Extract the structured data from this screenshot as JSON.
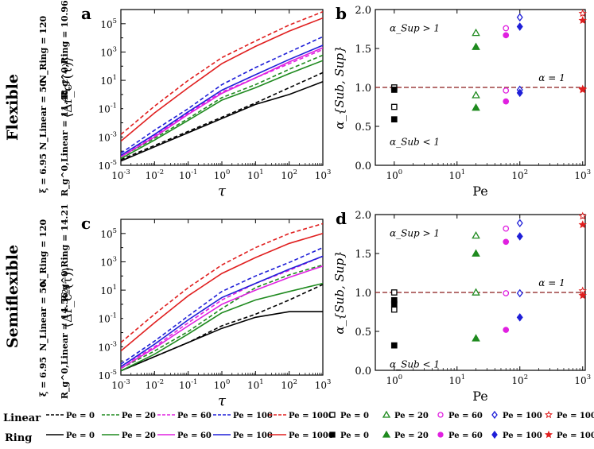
{
  "colors": {
    "pe0": "#000000",
    "pe20": "#1f8a1f",
    "pe60": "#e020e0",
    "pe100": "#1f1fd8",
    "pe1000": "#e01f1f",
    "ref_line": "#8b1a1a"
  },
  "row_labels": [
    {
      "name": "Flexible",
      "params_a": "ξ = 6.95",
      "params_b": "N_Linear = 50",
      "params_c": "N_Ring = 120",
      "params_d": "R_g^0,Linear = 11.48",
      "params_e": "R_g^0,Ring = 10.96"
    },
    {
      "name": "Semiflexible",
      "params_a": "ξ = 6.95",
      "params_b": "N_Linear = 50",
      "params_c": "N_Ring = 120",
      "params_d": "R_g^0,Linear = 14.56",
      "params_e": "R_g^0,Ring = 14.21"
    }
  ],
  "legend": {
    "linear_label": "Linear",
    "ring_label": "Ring",
    "entries": [
      "Pe = 0",
      "Pe = 20",
      "Pe = 60",
      "Pe = 100",
      "Pe = 1000"
    ]
  },
  "chart_data": [
    {
      "panel": "a",
      "type": "line",
      "xlabel": "τ",
      "ylabel": "⟨Δr_c²(τ)⟩",
      "xscale": "log",
      "yscale": "log",
      "xlim": [
        0.001,
        1000
      ],
      "ylim": [
        1e-05,
        1000000
      ],
      "xticks": [
        "10-3",
        "10-2",
        "10-1",
        "100",
        "101",
        "102",
        "103"
      ],
      "yticks": [
        "10-5",
        "10-3",
        "10-1",
        "101",
        "103",
        "105"
      ],
      "x": [
        0.001,
        0.01,
        0.1,
        1,
        10,
        100,
        1000
      ],
      "series": [
        {
          "name": "Linear Pe = 0",
          "style": "dashed",
          "color": "#000000",
          "values": [
            2.5e-05,
            0.00025,
            0.0025,
            0.025,
            0.25,
            3,
            35
          ]
        },
        {
          "name": "Linear Pe = 20",
          "style": "dashed",
          "color": "#1f8a1f",
          "values": [
            4e-05,
            0.0008,
            0.02,
            0.6,
            5,
            60,
            600
          ]
        },
        {
          "name": "Linear Pe = 60",
          "style": "dashed",
          "color": "#e020e0",
          "values": [
            5e-05,
            0.0012,
            0.05,
            1.5,
            15,
            150,
            1500
          ]
        },
        {
          "name": "Linear Pe = 100",
          "style": "dashed",
          "color": "#1f1fd8",
          "values": [
            7e-05,
            0.003,
            0.1,
            5,
            80,
            1000,
            12000
          ]
        },
        {
          "name": "Linear Pe = 1000",
          "style": "dashed",
          "color": "#e01f1f",
          "values": [
            0.0015,
            0.15,
            10,
            400,
            6000,
            80000,
            700000
          ]
        },
        {
          "name": "Ring Pe = 0",
          "style": "solid",
          "color": "#000000",
          "values": [
            2e-05,
            0.0002,
            0.002,
            0.02,
            0.2,
            1,
            8
          ]
        },
        {
          "name": "Ring Pe = 20",
          "style": "solid",
          "color": "#1f8a1f",
          "values": [
            3e-05,
            0.0006,
            0.015,
            0.4,
            3,
            30,
            250
          ]
        },
        {
          "name": "Ring Pe = 60",
          "style": "solid",
          "color": "#e020e0",
          "values": [
            4e-05,
            0.001,
            0.04,
            1.2,
            15,
            200,
            2000
          ]
        },
        {
          "name": "Ring Pe = 100",
          "style": "solid",
          "color": "#1f1fd8",
          "values": [
            5e-05,
            0.0015,
            0.06,
            2,
            25,
            300,
            3000
          ]
        },
        {
          "name": "Ring Pe = 1000",
          "style": "solid",
          "color": "#e01f1f",
          "values": [
            0.0005,
            0.05,
            3,
            150,
            2500,
            30000,
            250000
          ]
        }
      ]
    },
    {
      "panel": "b",
      "type": "scatter",
      "xlabel": "Pe",
      "ylabel": "α_{Sub, Sup}",
      "xscale": "log",
      "xlim": [
        0.5,
        1100
      ],
      "ylim": [
        0,
        2.0
      ],
      "xticks": [
        "100",
        "101",
        "102",
        "103"
      ],
      "yticks": [
        "0.0",
        "0.5",
        "1.0",
        "1.5",
        "2.0"
      ],
      "reference_line": {
        "y": 1.0,
        "label": "α = 1"
      },
      "annotations": [
        "α_Sup > 1",
        "α_Sub < 1"
      ],
      "series": [
        {
          "name": "Linear Pe = 0",
          "marker": "square-open",
          "color": "#000000",
          "points": [
            [
              1,
              1.0
            ],
            [
              1,
              0.75
            ]
          ]
        },
        {
          "name": "Linear Pe = 20",
          "marker": "triangle-open",
          "color": "#1f8a1f",
          "points": [
            [
              20,
              1.7
            ],
            [
              20,
              0.9
            ]
          ]
        },
        {
          "name": "Linear Pe = 60",
          "marker": "circle-open",
          "color": "#e020e0",
          "points": [
            [
              60,
              1.76
            ],
            [
              60,
              0.96
            ]
          ]
        },
        {
          "name": "Linear Pe = 100",
          "marker": "diamond-open",
          "color": "#1f1fd8",
          "points": [
            [
              100,
              1.9
            ],
            [
              100,
              0.97
            ]
          ]
        },
        {
          "name": "Linear Pe = 1000",
          "marker": "star-open",
          "color": "#e01f1f",
          "points": [
            [
              1000,
              1.95
            ],
            [
              1000,
              0.98
            ]
          ]
        },
        {
          "name": "Ring Pe = 0",
          "marker": "square-filled",
          "color": "#000000",
          "points": [
            [
              1,
              0.97
            ],
            [
              1,
              0.59
            ]
          ]
        },
        {
          "name": "Ring Pe = 20",
          "marker": "triangle-filled",
          "color": "#1f8a1f",
          "points": [
            [
              20,
              1.52
            ],
            [
              20,
              0.74
            ]
          ]
        },
        {
          "name": "Ring Pe = 60",
          "marker": "circle-filled",
          "color": "#e020e0",
          "points": [
            [
              60,
              1.67
            ],
            [
              60,
              0.82
            ]
          ]
        },
        {
          "name": "Ring Pe = 100",
          "marker": "diamond-filled",
          "color": "#1f1fd8",
          "points": [
            [
              100,
              1.78
            ],
            [
              100,
              0.93
            ]
          ]
        },
        {
          "name": "Ring Pe = 1000",
          "marker": "star-filled",
          "color": "#e01f1f",
          "points": [
            [
              1000,
              1.86
            ],
            [
              1000,
              0.97
            ]
          ]
        }
      ]
    },
    {
      "panel": "c",
      "type": "line",
      "xlabel": "τ",
      "ylabel": "⟨Δr_c²(τ)⟩",
      "xscale": "log",
      "yscale": "log",
      "xlim": [
        0.001,
        1000
      ],
      "ylim": [
        1e-05,
        1000000
      ],
      "xticks": [
        "10-3",
        "10-2",
        "10-1",
        "100",
        "101",
        "102",
        "103"
      ],
      "yticks": [
        "10-5",
        "10-3",
        "10-1",
        "101",
        "103",
        "105"
      ],
      "x": [
        0.001,
        0.01,
        0.1,
        1,
        10,
        100,
        1000
      ],
      "series": [
        {
          "name": "Linear Pe = 0",
          "style": "dashed",
          "color": "#000000",
          "values": [
            2e-05,
            0.0002,
            0.002,
            0.03,
            0.2,
            2,
            25
          ]
        },
        {
          "name": "Linear Pe = 20",
          "style": "dashed",
          "color": "#1f8a1f",
          "values": [
            3e-05,
            0.0005,
            0.012,
            0.5,
            15,
            120,
            600
          ]
        },
        {
          "name": "Linear Pe = 60",
          "style": "dashed",
          "color": "#e020e0",
          "values": [
            4e-05,
            0.001,
            0.05,
            2,
            30,
            250,
            2500
          ]
        },
        {
          "name": "Linear Pe = 100",
          "style": "dashed",
          "color": "#1f1fd8",
          "values": [
            6e-05,
            0.0025,
            0.15,
            8,
            100,
            900,
            10000
          ]
        },
        {
          "name": "Linear Pe = 1000",
          "style": "dashed",
          "color": "#e01f1f",
          "values": [
            0.002,
            0.2,
            15,
            600,
            10000,
            100000,
            500000
          ]
        },
        {
          "name": "Ring Pe = 0",
          "style": "solid",
          "color": "#000000",
          "values": [
            2e-05,
            0.0002,
            0.002,
            0.02,
            0.12,
            0.3,
            0.3
          ]
        },
        {
          "name": "Ring Pe = 20",
          "style": "solid",
          "color": "#1f8a1f",
          "values": [
            2e-05,
            0.0003,
            0.008,
            0.25,
            2,
            8,
            30
          ]
        },
        {
          "name": "Ring Pe = 60",
          "style": "solid",
          "color": "#e020e0",
          "values": [
            3e-05,
            0.0008,
            0.03,
            1,
            10,
            80,
            500
          ]
        },
        {
          "name": "Ring Pe = 100",
          "style": "solid",
          "color": "#1f1fd8",
          "values": [
            4e-05,
            0.0015,
            0.08,
            3,
            30,
            300,
            2500
          ]
        },
        {
          "name": "Ring Pe = 1000",
          "style": "solid",
          "color": "#e01f1f",
          "values": [
            0.0005,
            0.05,
            4,
            150,
            2000,
            20000,
            100000
          ]
        }
      ]
    },
    {
      "panel": "d",
      "type": "scatter",
      "xlabel": "Pe",
      "ylabel": "α_{Sub, Sup}",
      "xscale": "log",
      "xlim": [
        0.5,
        1100
      ],
      "ylim": [
        0,
        2.0
      ],
      "xticks": [
        "100",
        "101",
        "102",
        "103"
      ],
      "yticks": [
        "0.0",
        "0.5",
        "1.0",
        "1.5",
        "2.0"
      ],
      "reference_line": {
        "y": 1.0,
        "label": "α = 1"
      },
      "annotations": [
        "α_Sup > 1",
        "α_Sub < 1"
      ],
      "series": [
        {
          "name": "Linear Pe = 0",
          "marker": "square-open",
          "color": "#000000",
          "points": [
            [
              1,
              1.0
            ],
            [
              1,
              0.78
            ]
          ]
        },
        {
          "name": "Linear Pe = 20",
          "marker": "triangle-open",
          "color": "#1f8a1f",
          "points": [
            [
              20,
              1.73
            ],
            [
              20,
              1.0
            ]
          ]
        },
        {
          "name": "Linear Pe = 60",
          "marker": "circle-open",
          "color": "#e020e0",
          "points": [
            [
              60,
              1.82
            ],
            [
              60,
              0.99
            ]
          ]
        },
        {
          "name": "Linear Pe = 100",
          "marker": "diamond-open",
          "color": "#1f1fd8",
          "points": [
            [
              100,
              1.89
            ],
            [
              100,
              0.99
            ]
          ]
        },
        {
          "name": "Linear Pe = 1000",
          "marker": "star-open",
          "color": "#e01f1f",
          "points": [
            [
              1000,
              1.98
            ],
            [
              1000,
              1.02
            ]
          ]
        },
        {
          "name": "Ring Pe = 0",
          "marker": "square-filled",
          "color": "#000000",
          "points": [
            [
              1,
              0.9
            ],
            [
              1,
              0.85
            ],
            [
              1,
              0.32
            ]
          ]
        },
        {
          "name": "Ring Pe = 20",
          "marker": "triangle-filled",
          "color": "#1f8a1f",
          "points": [
            [
              20,
              1.5
            ],
            [
              20,
              0.41
            ]
          ]
        },
        {
          "name": "Ring Pe = 60",
          "marker": "circle-filled",
          "color": "#e020e0",
          "points": [
            [
              60,
              1.65
            ],
            [
              60,
              0.52
            ]
          ]
        },
        {
          "name": "Ring Pe = 100",
          "marker": "diamond-filled",
          "color": "#1f1fd8",
          "points": [
            [
              100,
              1.72
            ],
            [
              100,
              0.68
            ]
          ]
        },
        {
          "name": "Ring Pe = 1000",
          "marker": "star-filled",
          "color": "#e01f1f",
          "points": [
            [
              1000,
              1.87
            ],
            [
              1000,
              0.96
            ]
          ]
        }
      ]
    }
  ]
}
